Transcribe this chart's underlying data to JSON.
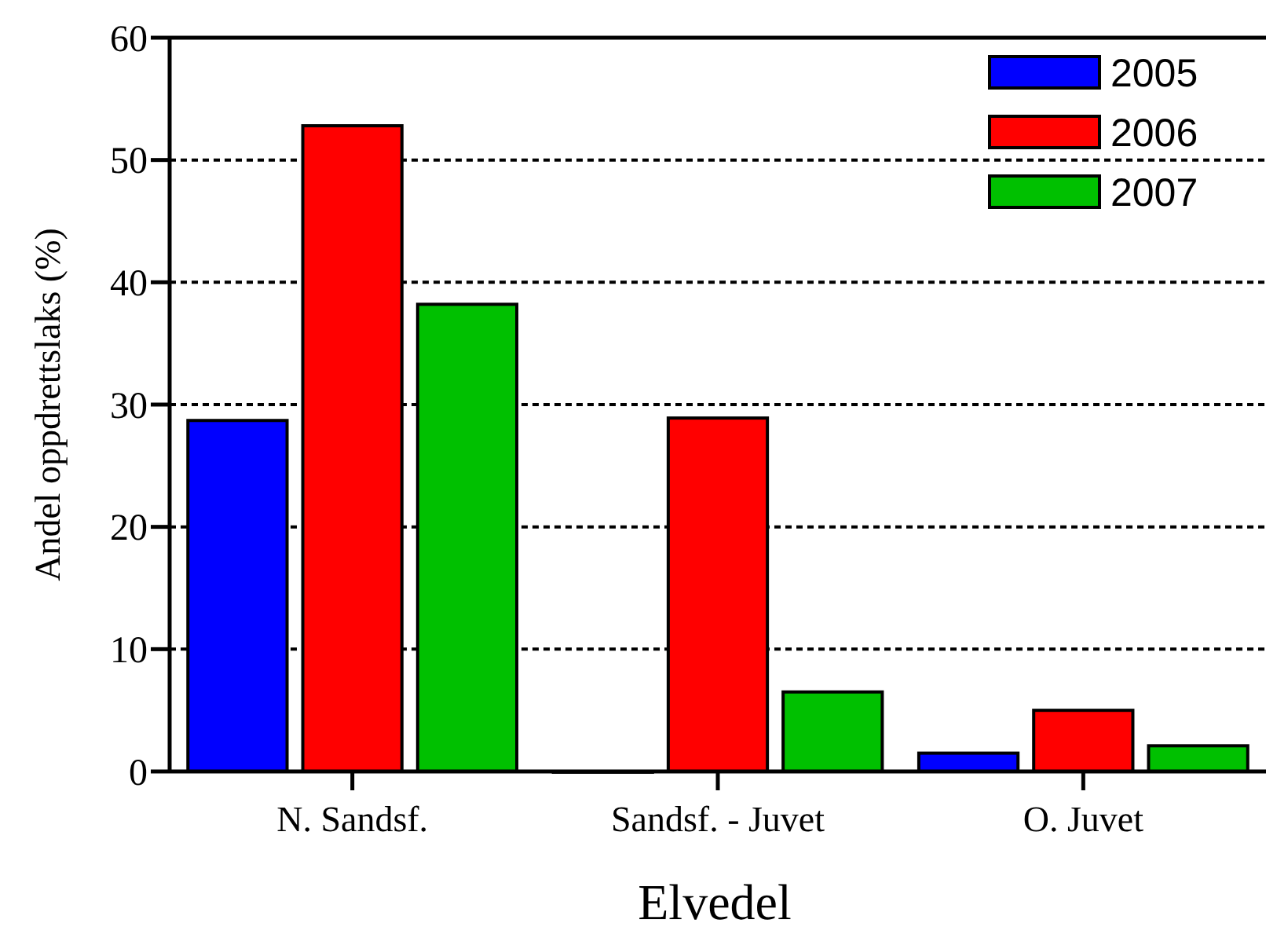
{
  "chart_data": {
    "type": "bar",
    "xlabel": "Elvedel",
    "ylabel": "Andel oppdrettslaks (%)",
    "categories": [
      "N. Sandsf.",
      "Sandsf. - Juvet",
      "O. Juvet"
    ],
    "series": [
      {
        "name": "2005",
        "color": "#0000ff",
        "values": [
          28.7,
          0,
          1.5
        ]
      },
      {
        "name": "2006",
        "color": "#ff0000",
        "values": [
          52.8,
          28.9,
          5.0
        ]
      },
      {
        "name": "2007",
        "color": "#00c000",
        "values": [
          38.2,
          6.5,
          2.1
        ]
      }
    ],
    "ylim": [
      0,
      60
    ],
    "yticks": [
      0,
      10,
      20,
      30,
      40,
      50,
      60
    ],
    "grid": "y",
    "legend": "top right"
  }
}
